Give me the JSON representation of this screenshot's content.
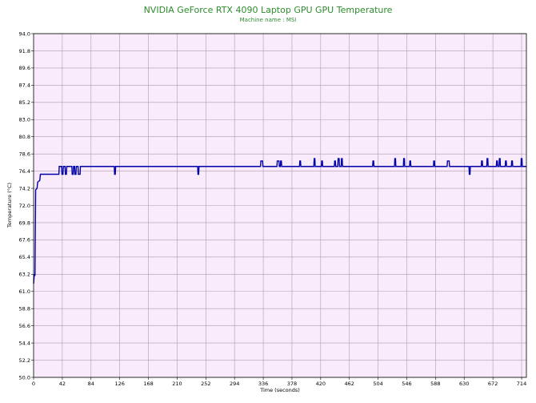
{
  "chart_data": {
    "type": "line",
    "title": "NVIDIA GeForce RTX 4090 Laptop GPU GPU Temperature",
    "subtitle": "Machine name : MSI",
    "xlabel": "Time (seconds)",
    "ylabel": "Temperature (°C)",
    "xlim": [
      0,
      721
    ],
    "ylim": [
      50.0,
      94.0
    ],
    "x_ticks": [
      "0",
      "42",
      "84",
      "126",
      "168",
      "210",
      "252",
      "294",
      "336",
      "378",
      "420",
      "462",
      "504",
      "546",
      "588",
      "630",
      "672",
      "714"
    ],
    "y_ticks": [
      "50.0",
      "52.2",
      "54.4",
      "56.6",
      "58.8",
      "61.0",
      "63.2",
      "65.4",
      "67.6",
      "69.8",
      "72.0",
      "74.2",
      "76.4",
      "78.6",
      "80.8",
      "83.0",
      "85.2",
      "87.4",
      "89.6",
      "91.8",
      "94.0"
    ],
    "grid": true,
    "colors": {
      "plot_bg": "#f9ebfb",
      "grid": "#b09ab4",
      "line": "#0000a8",
      "title": "#2e8b2e"
    },
    "series": [
      {
        "values": [
          [
            0,
            62.0
          ],
          [
            1,
            63.2
          ],
          [
            2,
            63.0
          ],
          [
            3,
            74.0
          ],
          [
            5,
            74.2
          ],
          [
            6,
            75.0
          ],
          [
            9,
            75.2
          ],
          [
            10,
            76.0
          ],
          [
            37,
            76.0
          ],
          [
            37.5,
            77.0
          ],
          [
            41,
            77.0
          ],
          [
            41.5,
            76.0
          ],
          [
            43,
            76.0
          ],
          [
            43.5,
            77.0
          ],
          [
            46,
            77.0
          ],
          [
            46.5,
            76.0
          ],
          [
            48,
            76.0
          ],
          [
            48.5,
            77.0
          ],
          [
            56,
            77.0
          ],
          [
            56.5,
            76.0
          ],
          [
            58,
            76.0
          ],
          [
            58.5,
            77.0
          ],
          [
            60,
            77.0
          ],
          [
            60.5,
            76.0
          ],
          [
            62,
            76.0
          ],
          [
            62.5,
            77.0
          ],
          [
            65,
            77.0
          ],
          [
            65.5,
            76.0
          ],
          [
            68,
            76.0
          ],
          [
            68.5,
            77.0
          ],
          [
            72,
            77.0
          ],
          [
            118,
            77.0
          ],
          [
            118.5,
            76.0
          ],
          [
            119.5,
            76.0
          ],
          [
            120,
            77.0
          ],
          [
            240,
            77.0
          ],
          [
            240.5,
            76.0
          ],
          [
            241.5,
            76.0
          ],
          [
            242,
            77.0
          ],
          [
            332,
            77.0
          ],
          [
            332.5,
            77.7
          ],
          [
            335,
            77.7
          ],
          [
            335.5,
            77.0
          ],
          [
            356,
            77.0
          ],
          [
            356.5,
            77.7
          ],
          [
            359,
            77.7
          ],
          [
            359.5,
            77.0
          ],
          [
            361,
            77.0
          ],
          [
            361.5,
            77.7
          ],
          [
            362.5,
            77.7
          ],
          [
            363,
            77.0
          ],
          [
            389,
            77.0
          ],
          [
            389.5,
            77.7
          ],
          [
            390.5,
            77.7
          ],
          [
            391,
            77.0
          ],
          [
            410,
            77.0
          ],
          [
            410.5,
            78.0
          ],
          [
            411.5,
            78.0
          ],
          [
            412,
            77.0
          ],
          [
            421,
            77.0
          ],
          [
            421.5,
            77.7
          ],
          [
            422.5,
            77.7
          ],
          [
            423,
            77.0
          ],
          [
            440,
            77.0
          ],
          [
            440.5,
            77.7
          ],
          [
            441.5,
            77.7
          ],
          [
            442,
            77.0
          ],
          [
            445,
            77.0
          ],
          [
            445.5,
            78.0
          ],
          [
            447,
            78.0
          ],
          [
            447.5,
            77.0
          ],
          [
            450,
            77.0
          ],
          [
            450.5,
            78.0
          ],
          [
            451.5,
            78.0
          ],
          [
            452,
            77.0
          ],
          [
            496,
            77.0
          ],
          [
            496.5,
            77.7
          ],
          [
            497.5,
            77.7
          ],
          [
            498,
            77.0
          ],
          [
            528,
            77.0
          ],
          [
            528.5,
            78.0
          ],
          [
            529.5,
            78.0
          ],
          [
            530,
            77.0
          ],
          [
            541,
            77.0
          ],
          [
            541.5,
            78.0
          ],
          [
            542.5,
            78.0
          ],
          [
            543,
            77.0
          ],
          [
            550,
            77.0
          ],
          [
            550.5,
            77.7
          ],
          [
            551.5,
            77.7
          ],
          [
            552,
            77.0
          ],
          [
            585,
            77.0
          ],
          [
            585.5,
            77.7
          ],
          [
            586.5,
            77.7
          ],
          [
            587,
            77.0
          ],
          [
            605,
            77.0
          ],
          [
            605.5,
            77.7
          ],
          [
            608,
            77.7
          ],
          [
            608.5,
            77.0
          ],
          [
            637,
            77.0
          ],
          [
            637.5,
            76.0
          ],
          [
            638.5,
            76.0
          ],
          [
            639,
            77.0
          ],
          [
            655,
            77.0
          ],
          [
            655.5,
            77.7
          ],
          [
            656.5,
            77.7
          ],
          [
            657,
            77.0
          ],
          [
            663,
            77.0
          ],
          [
            663.5,
            78.0
          ],
          [
            664.5,
            78.0
          ],
          [
            665,
            77.0
          ],
          [
            677,
            77.0
          ],
          [
            677.5,
            77.7
          ],
          [
            678.5,
            77.7
          ],
          [
            679,
            77.0
          ],
          [
            681,
            77.0
          ],
          [
            681.5,
            78.0
          ],
          [
            682.5,
            78.0
          ],
          [
            683,
            77.0
          ],
          [
            690,
            77.0
          ],
          [
            690.5,
            77.7
          ],
          [
            691.5,
            77.7
          ],
          [
            692,
            77.0
          ],
          [
            699,
            77.0
          ],
          [
            699.5,
            77.7
          ],
          [
            700.5,
            77.7
          ],
          [
            701,
            77.0
          ],
          [
            713,
            77.0
          ],
          [
            713.5,
            78.0
          ],
          [
            714.5,
            78.0
          ],
          [
            715,
            77.0
          ],
          [
            721,
            77.0
          ]
        ]
      }
    ]
  }
}
